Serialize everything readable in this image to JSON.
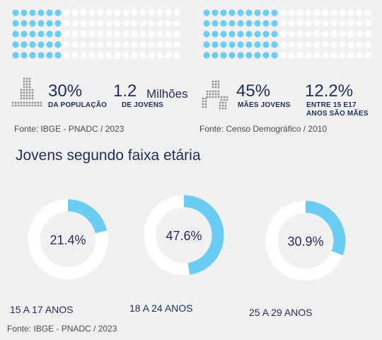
{
  "infographic": {
    "left": {
      "dot_fill_fraction": 0.3,
      "stat1_value": "30%",
      "stat1_label": "DA POPULAÇÃO",
      "stat2_value": "1.2",
      "stat2_unit": "Milhões",
      "stat2_label": "DE JOVENS",
      "source": "Fonte: IBGE - PNADC / 2023"
    },
    "right": {
      "dot_fill_fraction": 0.45,
      "stat1_value": "45%",
      "stat1_label": "MÃES JOVENS",
      "stat2_value": "12.2%",
      "stat2_label_line1": "ENTRE 15 E17",
      "stat2_label_line2": "ANOS SÃO MÃES",
      "source": "Fonte: Censo Demográfico / 2010"
    }
  },
  "section": {
    "title": "Jovens segundo faixa etária",
    "source": "Fonte: IBGE - PNADC / 2023"
  },
  "colors": {
    "accent": "#6ccdf4",
    "track": "#ffffff",
    "text": "#1f2d5a",
    "dot_gray": "#9a9a9a"
  },
  "icons": [
    "person-dots-icon",
    "mother-child-dots-icon"
  ],
  "chart_data": {
    "type": "pie",
    "categories": [
      "15 A 17 ANOS",
      "18 A 24 ANOS",
      "25 A 29 ANOS"
    ],
    "values": [
      21.4,
      47.6,
      30.9
    ],
    "value_labels": [
      "21.4%",
      "47.6%",
      "30.9%"
    ]
  }
}
